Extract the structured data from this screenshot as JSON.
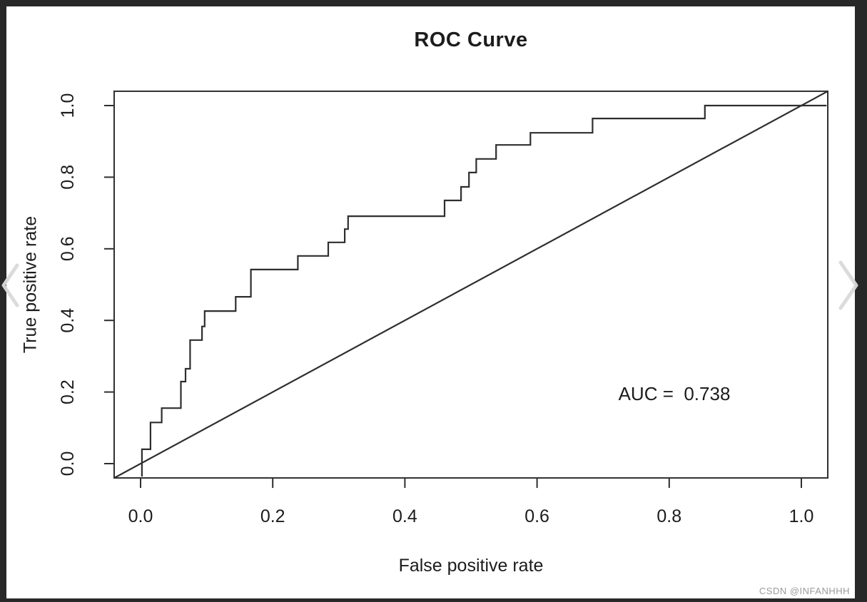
{
  "viewer": {
    "watermark": "CSDN @INFANHHH",
    "background_color": "#282828",
    "prev_icon": "chevron-left",
    "next_icon": "chevron-right",
    "chevron_color": "#d9d9d9"
  },
  "chart_data": {
    "type": "line",
    "title": "ROC Curve",
    "xlabel": "False positive rate",
    "ylabel": "True positive rate",
    "annotation": "AUC =  0.738",
    "auc_value": 0.738,
    "xlim": [
      -0.04,
      1.04
    ],
    "ylim": [
      -0.04,
      1.04
    ],
    "grid": false,
    "legend": false,
    "axis_color": "#2e2e2e",
    "line_color": "#2e2e2e",
    "text_color": "#1c1c1c",
    "ticks": {
      "x_values": [
        0.0,
        0.2,
        0.4,
        0.6,
        0.8,
        1.0
      ],
      "x_labels": [
        "0.0",
        "0.2",
        "0.4",
        "0.6",
        "0.8",
        "1.0"
      ],
      "y_values": [
        0.0,
        0.2,
        0.4,
        0.6,
        0.8,
        1.0
      ],
      "y_labels": [
        "0.0",
        "0.2",
        "0.4",
        "0.6",
        "0.8",
        "1.0"
      ]
    },
    "series": [
      {
        "name": "roc-step-curve",
        "style": "step",
        "points": [
          [
            0.002,
            -0.036
          ],
          [
            0.002,
            0.04
          ],
          [
            0.015,
            0.04
          ],
          [
            0.015,
            0.115
          ],
          [
            0.032,
            0.115
          ],
          [
            0.032,
            0.155
          ],
          [
            0.061,
            0.155
          ],
          [
            0.061,
            0.229
          ],
          [
            0.068,
            0.229
          ],
          [
            0.068,
            0.265
          ],
          [
            0.075,
            0.265
          ],
          [
            0.075,
            0.345
          ],
          [
            0.093,
            0.345
          ],
          [
            0.093,
            0.383
          ],
          [
            0.097,
            0.383
          ],
          [
            0.097,
            0.426
          ],
          [
            0.144,
            0.426
          ],
          [
            0.144,
            0.466
          ],
          [
            0.167,
            0.466
          ],
          [
            0.167,
            0.542
          ],
          [
            0.238,
            0.542
          ],
          [
            0.238,
            0.58
          ],
          [
            0.284,
            0.58
          ],
          [
            0.284,
            0.618
          ],
          [
            0.309,
            0.618
          ],
          [
            0.309,
            0.655
          ],
          [
            0.314,
            0.655
          ],
          [
            0.314,
            0.691
          ],
          [
            0.46,
            0.691
          ],
          [
            0.46,
            0.735
          ],
          [
            0.485,
            0.735
          ],
          [
            0.485,
            0.773
          ],
          [
            0.497,
            0.773
          ],
          [
            0.497,
            0.813
          ],
          [
            0.508,
            0.813
          ],
          [
            0.508,
            0.851
          ],
          [
            0.538,
            0.851
          ],
          [
            0.538,
            0.89
          ],
          [
            0.59,
            0.89
          ],
          [
            0.59,
            0.924
          ],
          [
            0.684,
            0.924
          ],
          [
            0.684,
            0.964
          ],
          [
            0.854,
            0.964
          ],
          [
            0.854,
            1.0
          ],
          [
            1.038,
            1.0
          ]
        ]
      },
      {
        "name": "chance-diagonal",
        "style": "line",
        "points": [
          [
            -0.04,
            -0.04
          ],
          [
            1.04,
            1.04
          ]
        ]
      }
    ]
  }
}
